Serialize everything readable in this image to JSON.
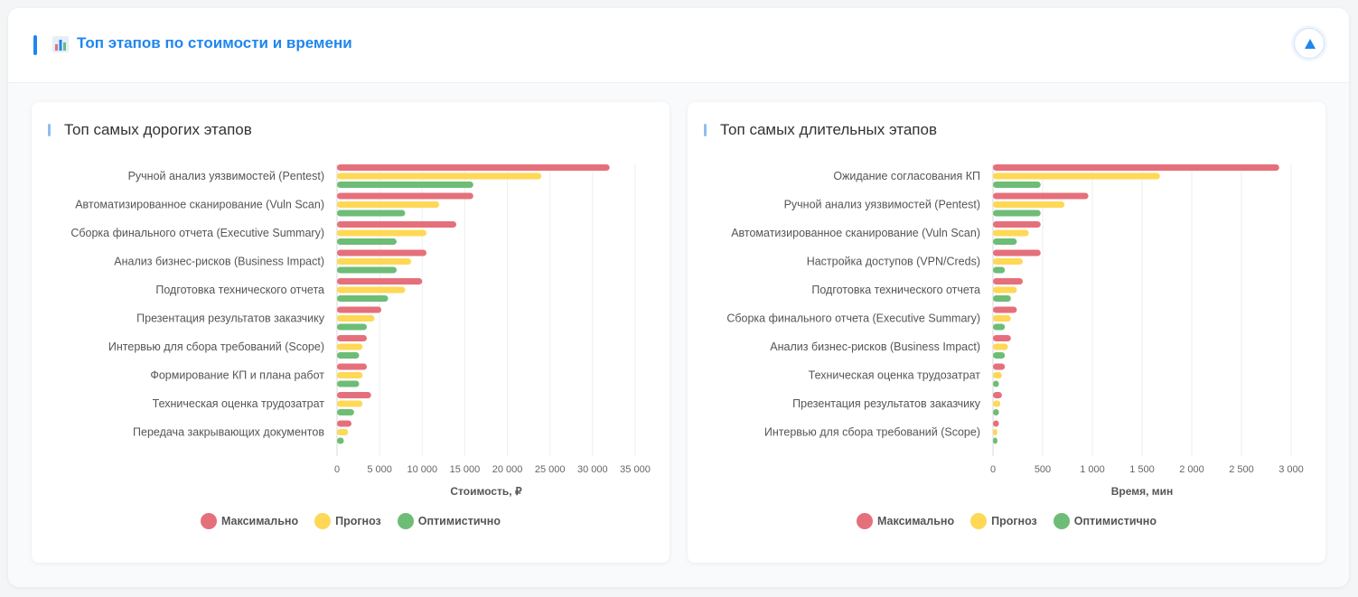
{
  "header": {
    "title": "Топ этапов по стоимости и времени",
    "icon": "bar-chart-icon",
    "collapse_icon": "chevron-up-icon"
  },
  "colors": {
    "accent": "#1f86ee",
    "max": "#e5707b",
    "forecast": "#fed856",
    "optimistic": "#6dbd76"
  },
  "chart_data": [
    {
      "type": "bar",
      "orientation": "horizontal",
      "title": "Топ самых дорогих этапов",
      "xlabel": "Стоимость, ₽",
      "ylabel": "",
      "xlim": [
        0,
        35000
      ],
      "ticks": [
        0,
        5000,
        10000,
        15000,
        20000,
        25000,
        30000,
        35000
      ],
      "tick_labels": [
        "0",
        "5 000",
        "10 000",
        "15 000",
        "20 000",
        "25 000",
        "30 000",
        "35 000"
      ],
      "grid": true,
      "legend_position": "bottom",
      "categories": [
        "Ручной анализ уязвимостей (Pentest)",
        "Автоматизированное сканирование (Vuln Scan)",
        "Сборка финального отчета (Executive Summary)",
        "Анализ бизнес-рисков (Business Impact)",
        "Подготовка технического отчета",
        "Презентация результатов заказчику",
        "Интервью для сбора требований (Scope)",
        "Формирование КП и плана работ",
        "Техническая оценка трудозатрат",
        "Передача закрывающих документов"
      ],
      "series": [
        {
          "name": "Максимально",
          "values": [
            32000,
            16000,
            14000,
            10500,
            10000,
            5200,
            3500,
            3500,
            4000,
            1700
          ]
        },
        {
          "name": "Прогноз",
          "values": [
            24000,
            12000,
            10500,
            8700,
            8000,
            4400,
            3000,
            3000,
            3000,
            1300
          ]
        },
        {
          "name": "Оптимистично",
          "values": [
            16000,
            8000,
            7000,
            7000,
            6000,
            3500,
            2600,
            2600,
            2000,
            800
          ]
        }
      ]
    },
    {
      "type": "bar",
      "orientation": "horizontal",
      "title": "Топ самых длительных этапов",
      "xlabel": "Время, мин",
      "ylabel": "",
      "xlim": [
        0,
        3000
      ],
      "ticks": [
        0,
        500,
        1000,
        1500,
        2000,
        2500,
        3000
      ],
      "tick_labels": [
        "0",
        "500",
        "1 000",
        "1 500",
        "2 000",
        "2 500",
        "3 000"
      ],
      "grid": true,
      "legend_position": "bottom",
      "categories": [
        "Ожидание согласования КП",
        "Ручной анализ уязвимостей (Pentest)",
        "Автоматизированное сканирование (Vuln Scan)",
        "Настройка доступов (VPN/Creds)",
        "Подготовка технического отчета",
        "Сборка финального отчета (Executive Summary)",
        "Анализ бизнес-рисков (Business Impact)",
        "Техническая оценка трудозатрат",
        "Презентация результатов заказчику",
        "Интервью для сбора требований (Scope)"
      ],
      "series": [
        {
          "name": "Максимально",
          "values": [
            2880,
            960,
            480,
            480,
            300,
            240,
            180,
            120,
            90,
            60
          ]
        },
        {
          "name": "Прогноз",
          "values": [
            1680,
            720,
            360,
            300,
            240,
            180,
            150,
            90,
            75,
            45
          ]
        },
        {
          "name": "Оптимистично",
          "values": [
            480,
            480,
            240,
            120,
            180,
            120,
            120,
            60,
            60,
            45
          ]
        }
      ]
    }
  ]
}
